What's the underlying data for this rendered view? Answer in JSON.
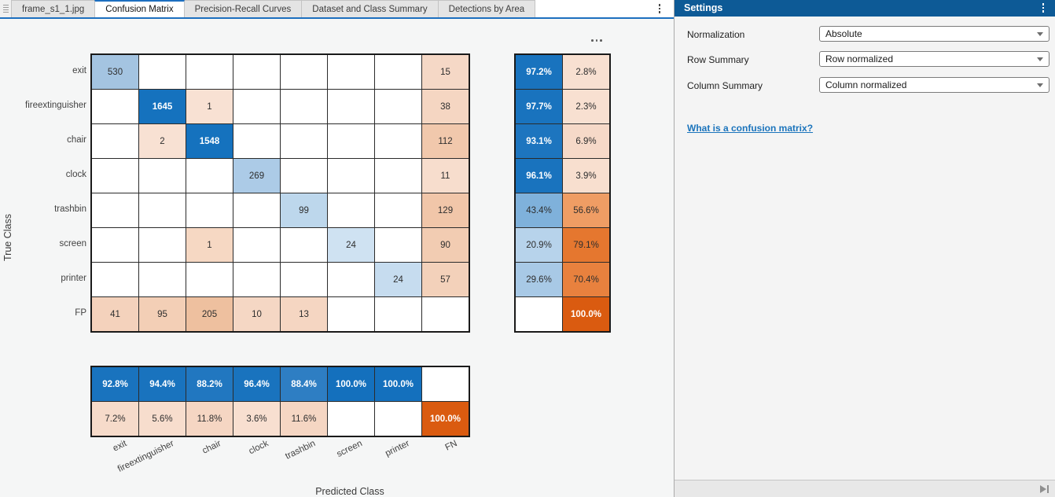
{
  "tabs": {
    "items": [
      {
        "label": "frame_s1_1.jpg",
        "active": false
      },
      {
        "label": "Confusion Matrix",
        "active": true
      },
      {
        "label": "Precision-Recall Curves",
        "active": false
      },
      {
        "label": "Dataset and Class Summary",
        "active": false
      },
      {
        "label": "Detections by Area",
        "active": false
      }
    ],
    "accent_color": "#1d6fbf"
  },
  "figure": {
    "x_axis_title": "Predicted Class",
    "y_axis_title": "True Class",
    "row_labels": [
      "exit",
      "fireextinguisher",
      "chair",
      "clock",
      "trashbin",
      "screen",
      "printer",
      "FP"
    ],
    "col_labels": [
      "exit",
      "fireextinguisher",
      "chair",
      "clock",
      "trashbin",
      "screen",
      "printer",
      "FN"
    ],
    "cells": [
      [
        {
          "v": "530",
          "bg": "#a4c4e1"
        },
        null,
        null,
        null,
        null,
        null,
        null,
        {
          "v": "15",
          "bg": "#f5d8c6"
        }
      ],
      [
        null,
        {
          "v": "1645",
          "bg": "#1572be",
          "w": true
        },
        {
          "v": "1",
          "bg": "#f8e1d3"
        },
        null,
        null,
        null,
        null,
        {
          "v": "38",
          "bg": "#f5d6c2"
        }
      ],
      [
        null,
        {
          "v": "2",
          "bg": "#f8e1d3"
        },
        {
          "v": "1548",
          "bg": "#1572be",
          "w": true
        },
        null,
        null,
        null,
        null,
        {
          "v": "112",
          "bg": "#f1c8ac"
        }
      ],
      [
        null,
        null,
        null,
        {
          "v": "269",
          "bg": "#accbe7"
        },
        null,
        null,
        null,
        {
          "v": "11",
          "bg": "#f7ddcd"
        }
      ],
      [
        null,
        null,
        null,
        null,
        {
          "v": "99",
          "bg": "#bdd7ec"
        },
        null,
        null,
        {
          "v": "129",
          "bg": "#f1c6a9"
        }
      ],
      [
        null,
        null,
        {
          "v": "1",
          "bg": "#f6d8c3"
        },
        null,
        null,
        {
          "v": "24",
          "bg": "#cfe2f2"
        },
        null,
        {
          "v": "90",
          "bg": "#f2ccb2"
        }
      ],
      [
        null,
        null,
        null,
        null,
        null,
        null,
        {
          "v": "24",
          "bg": "#c6dcef"
        },
        {
          "v": "57",
          "bg": "#f3d1ba"
        }
      ],
      [
        {
          "v": "41",
          "bg": "#f4d2bc"
        },
        {
          "v": "95",
          "bg": "#f3cfb6"
        },
        {
          "v": "205",
          "bg": "#eec09f"
        },
        {
          "v": "10",
          "bg": "#f5d7c4"
        },
        {
          "v": "13",
          "bg": "#f5d6c2"
        },
        null,
        null,
        null
      ]
    ],
    "row_summary": [
      [
        {
          "v": "97.2%",
          "bg": "#1973be",
          "w": true
        },
        {
          "v": "2.8%",
          "bg": "#f8e0d1"
        }
      ],
      [
        {
          "v": "97.7%",
          "bg": "#1973be",
          "w": true
        },
        {
          "v": "2.3%",
          "bg": "#f8e0d1"
        }
      ],
      [
        {
          "v": "93.1%",
          "bg": "#1d75bf",
          "w": true
        },
        {
          "v": "6.9%",
          "bg": "#f6d9c8"
        }
      ],
      [
        {
          "v": "96.1%",
          "bg": "#1973be",
          "w": true
        },
        {
          "v": "3.9%",
          "bg": "#f8dfcf"
        }
      ],
      [
        {
          "v": "43.4%",
          "bg": "#7fb1db"
        },
        {
          "v": "56.6%",
          "bg": "#ef9d64"
        }
      ],
      [
        {
          "v": "20.9%",
          "bg": "#b7d3eb"
        },
        {
          "v": "79.1%",
          "bg": "#e5772f"
        }
      ],
      [
        {
          "v": "29.6%",
          "bg": "#a8c9e6"
        },
        {
          "v": "70.4%",
          "bg": "#e8813e"
        }
      ],
      [
        null,
        {
          "v": "100.0%",
          "bg": "#da5b10",
          "w": true
        }
      ]
    ],
    "col_summary": [
      [
        {
          "v": "92.8%",
          "bg": "#1973be",
          "w": true
        },
        {
          "v": "94.4%",
          "bg": "#1973be",
          "w": true
        },
        {
          "v": "88.2%",
          "bg": "#2177c0",
          "w": true
        },
        {
          "v": "96.4%",
          "bg": "#1973be",
          "w": true
        },
        {
          "v": "88.4%",
          "bg": "#2e7ec3",
          "w": true
        },
        {
          "v": "100.0%",
          "bg": "#1470bd",
          "w": true
        },
        {
          "v": "100.0%",
          "bg": "#1470bd",
          "w": true
        },
        null
      ],
      [
        {
          "v": "7.2%",
          "bg": "#f6dbca"
        },
        {
          "v": "5.6%",
          "bg": "#f7ddcd"
        },
        {
          "v": "11.8%",
          "bg": "#f5d6c3"
        },
        {
          "v": "3.6%",
          "bg": "#f8dfd0"
        },
        {
          "v": "11.6%",
          "bg": "#f5d6c3"
        },
        null,
        null,
        {
          "v": "100.0%",
          "bg": "#da5b10",
          "w": true
        }
      ]
    ]
  },
  "chart_data": {
    "type": "heatmap",
    "title": "Confusion Matrix",
    "xlabel": "Predicted Class",
    "ylabel": "True Class",
    "true_classes": [
      "exit",
      "fireextinguisher",
      "chair",
      "clock",
      "trashbin",
      "screen",
      "printer",
      "FP"
    ],
    "predicted_classes": [
      "exit",
      "fireextinguisher",
      "chair",
      "clock",
      "trashbin",
      "screen",
      "printer",
      "FN"
    ],
    "matrix": [
      [
        530,
        null,
        null,
        null,
        null,
        null,
        null,
        15
      ],
      [
        null,
        1645,
        1,
        null,
        null,
        null,
        null,
        38
      ],
      [
        null,
        2,
        1548,
        null,
        null,
        null,
        null,
        112
      ],
      [
        null,
        null,
        null,
        269,
        null,
        null,
        null,
        11
      ],
      [
        null,
        null,
        null,
        null,
        99,
        null,
        null,
        129
      ],
      [
        null,
        null,
        1,
        null,
        null,
        24,
        null,
        90
      ],
      [
        null,
        null,
        null,
        null,
        null,
        null,
        24,
        57
      ],
      [
        41,
        95,
        205,
        10,
        13,
        null,
        null,
        null
      ]
    ],
    "row_summary_pct": [
      [
        97.2,
        2.8
      ],
      [
        97.7,
        2.3
      ],
      [
        93.1,
        6.9
      ],
      [
        96.1,
        3.9
      ],
      [
        43.4,
        56.6
      ],
      [
        20.9,
        79.1
      ],
      [
        29.6,
        70.4
      ],
      [
        null,
        100.0
      ]
    ],
    "col_summary_pct": [
      [
        92.8,
        94.4,
        88.2,
        96.4,
        88.4,
        100.0,
        100.0,
        null
      ],
      [
        7.2,
        5.6,
        11.8,
        3.6,
        11.6,
        null,
        null,
        100.0
      ]
    ]
  },
  "settings": {
    "title": "Settings",
    "header_color": "#0d5a96",
    "rows": [
      {
        "label": "Normalization",
        "value": "Absolute"
      },
      {
        "label": "Row Summary",
        "value": "Row normalized"
      },
      {
        "label": "Column Summary",
        "value": "Column normalized"
      }
    ],
    "link": "What is a confusion matrix?"
  }
}
